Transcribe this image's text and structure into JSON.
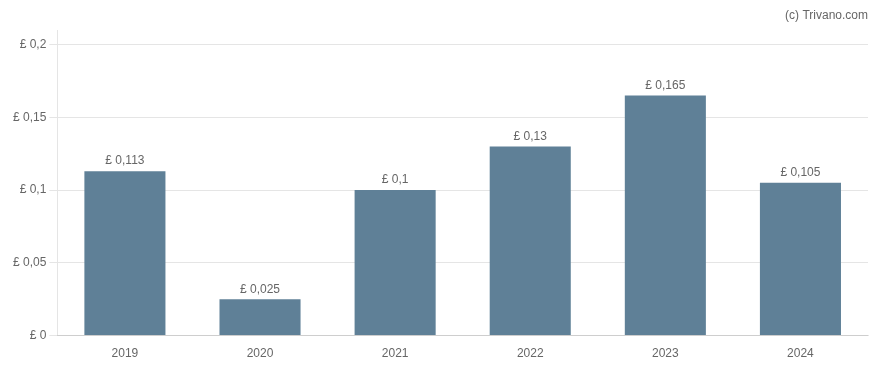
{
  "chart_data": {
    "type": "bar",
    "annotation": "(c) Trivano.com",
    "categories": [
      "2019",
      "2020",
      "2021",
      "2022",
      "2023",
      "2024"
    ],
    "values": [
      0.113,
      0.025,
      0.1,
      0.13,
      0.165,
      0.105
    ],
    "value_labels": [
      "£ 0,113",
      "£ 0,025",
      "£ 0,1",
      "£ 0,13",
      "£ 0,165",
      "£ 0,105"
    ],
    "data_labels": true,
    "color": "#5f8097",
    "ylim": [
      0,
      0.21
    ],
    "yticks": [
      {
        "value": 0,
        "label": "£ 0"
      },
      {
        "value": 0.05,
        "label": "£ 0,05"
      },
      {
        "value": 0.1,
        "label": "£ 0,1"
      },
      {
        "value": 0.15,
        "label": "£ 0,15"
      },
      {
        "value": 0.2,
        "label": "£ 0,2"
      }
    ],
    "grid": true
  }
}
